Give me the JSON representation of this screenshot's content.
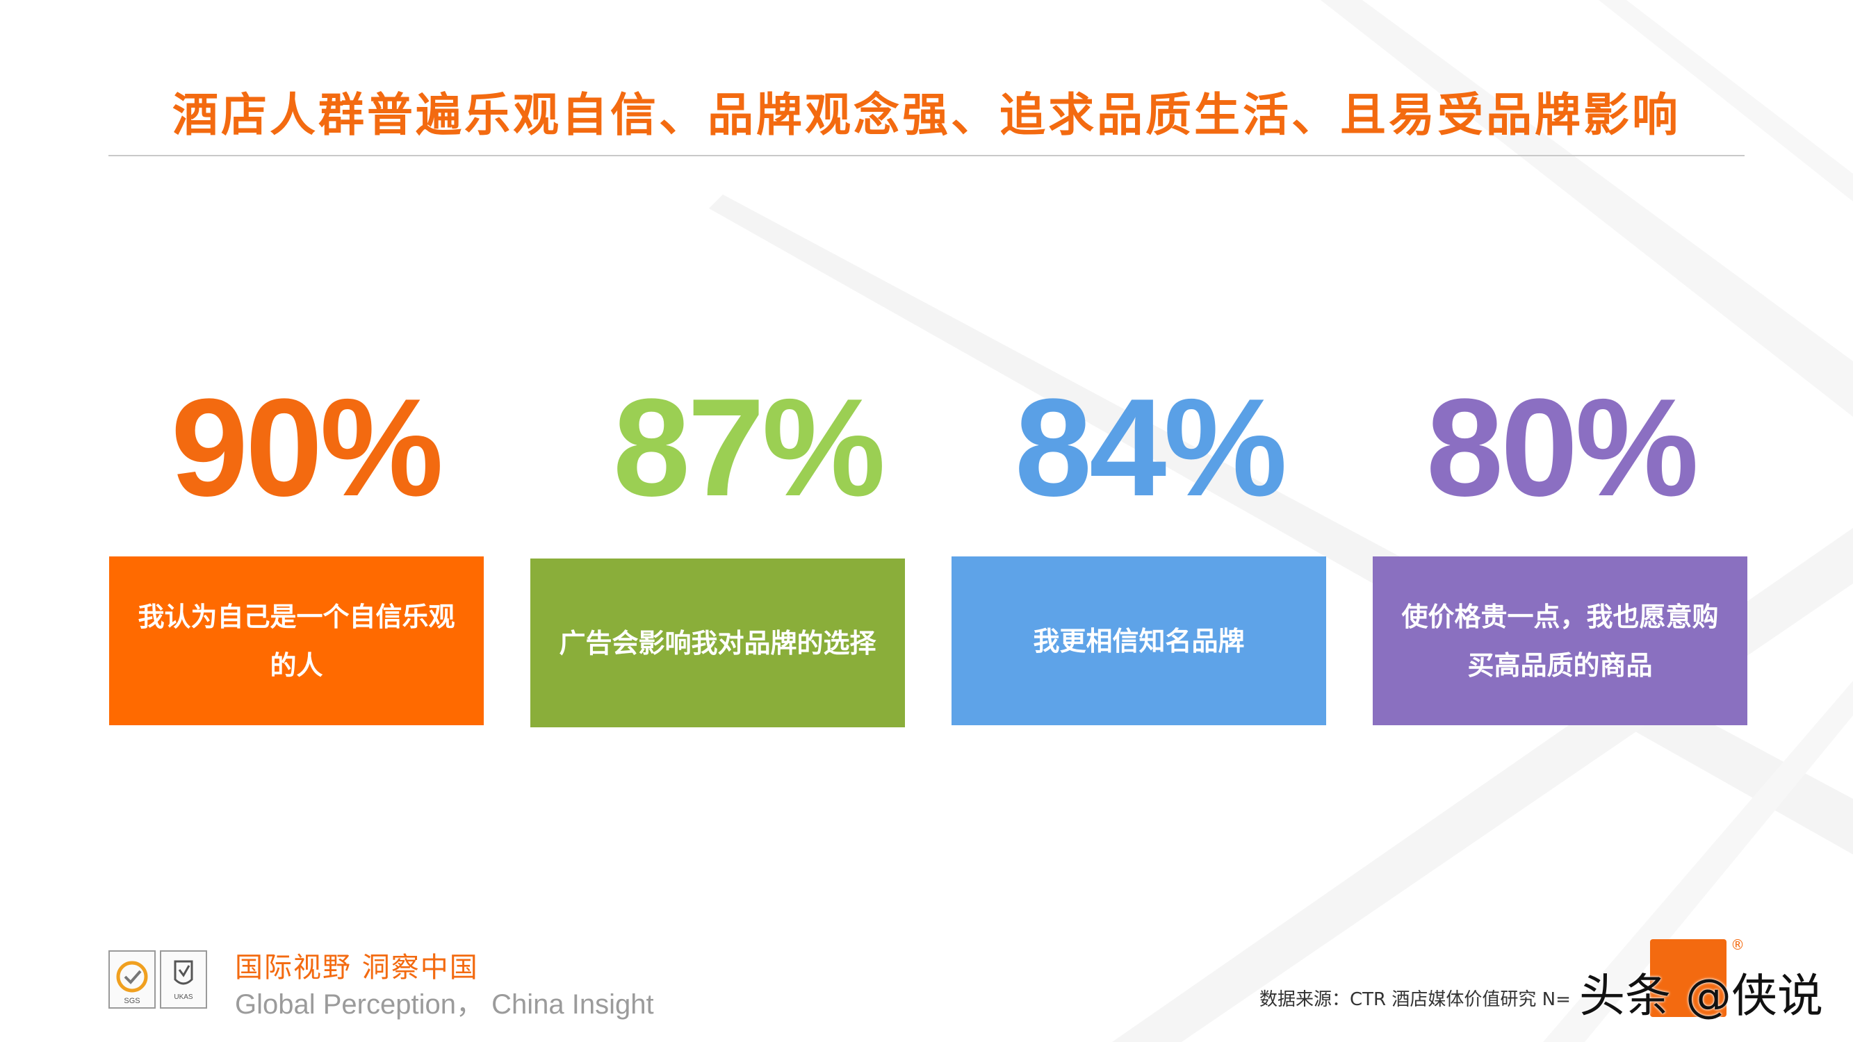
{
  "title": "酒店人群普遍乐观自信、品牌观念强、追求品质生活、且易受品牌影响",
  "stats": [
    {
      "value": "90%",
      "color": "#f36a10",
      "label_line1": "我认为自己是一个自信乐观",
      "label_line2": "的人",
      "card_color": "#ff6a00"
    },
    {
      "value": "87%",
      "color": "#9bcf53",
      "label_line1": "广告会影响我对品牌的选择",
      "label_line2": "",
      "card_color": "#8aae3a"
    },
    {
      "value": "84%",
      "color": "#5aa0e6",
      "label_line1": "我更相信知名品牌",
      "label_line2": "",
      "card_color": "#5ea3e8"
    },
    {
      "value": "80%",
      "color": "#8b6fc2",
      "label_line1": "使价格贵一点，我也愿意购",
      "label_line2": "买高品质的商品",
      "card_color": "#8a70c0"
    }
  ],
  "footer": {
    "tagline_cn": "国际视野  洞察中国",
    "tagline_en": "Global Perception，  China Insight",
    "source": "数据来源：CTR 酒店媒体价值研究   N=",
    "logo1_name": "SGS",
    "logo2_name": "UKAS",
    "reg_mark": "®",
    "watermark": "头条 @侠说"
  }
}
